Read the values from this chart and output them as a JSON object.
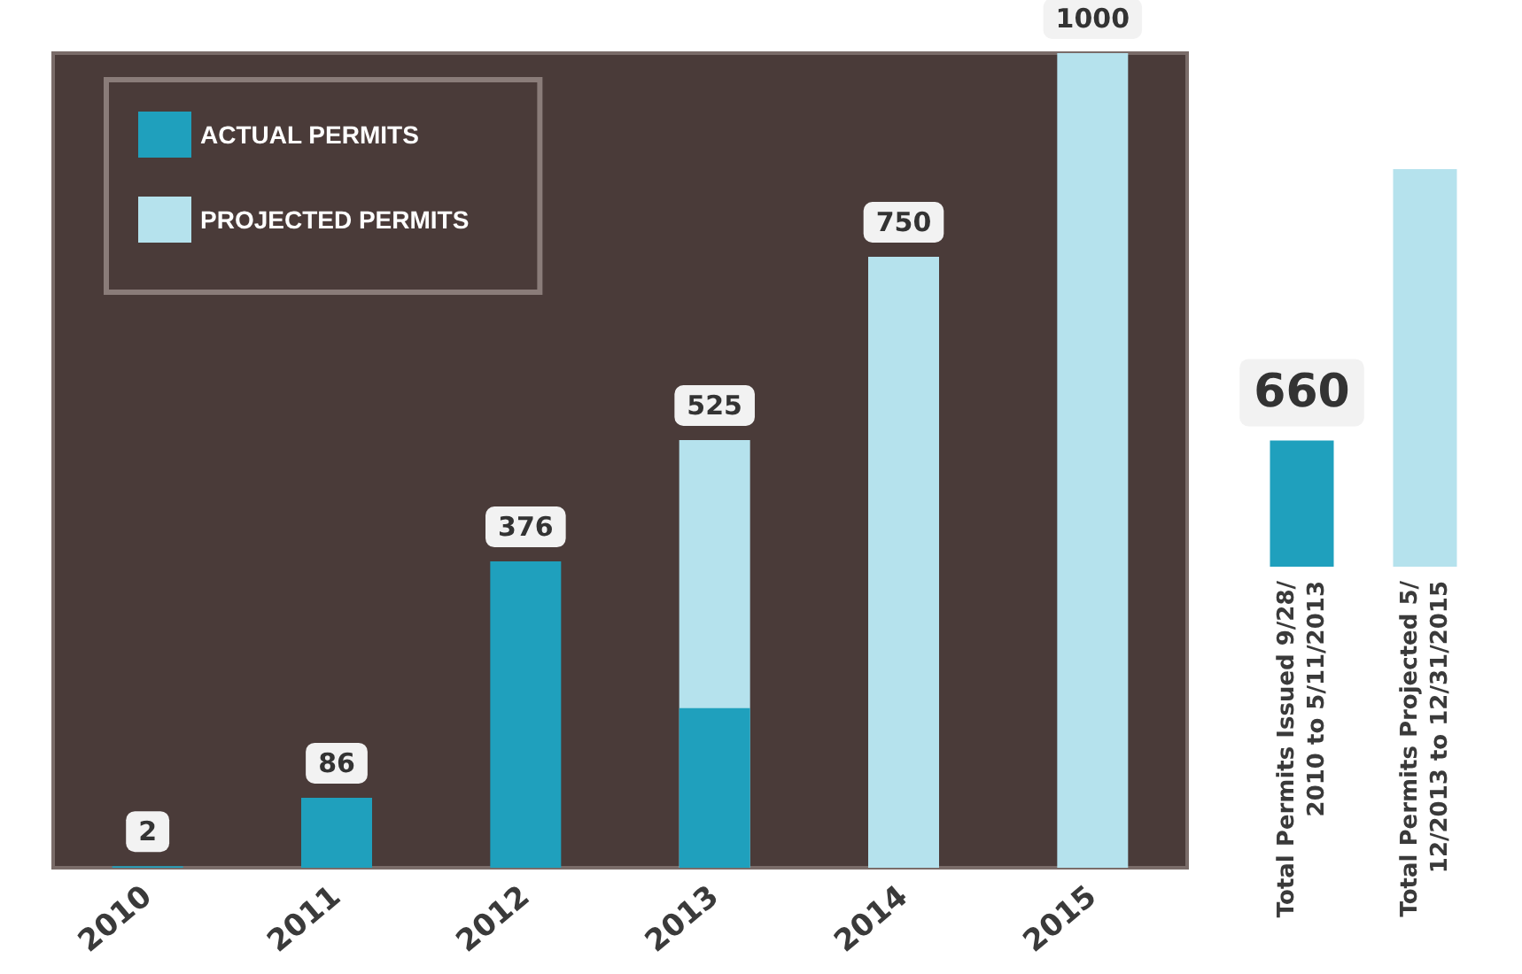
{
  "chart_data": [
    {
      "type": "bar",
      "categories": [
        "2010",
        "2011",
        "2012",
        "2013",
        "2014",
        "2015"
      ],
      "legend": "top left",
      "series": [
        {
          "name": "ACTUAL PERMITS",
          "color": "#1fa0bd",
          "values": [
            2,
            86,
            376,
            196,
            null,
            null
          ],
          "value_labels": [
            "2",
            "86",
            "376",
            null,
            null,
            null
          ]
        },
        {
          "name": "PROJECTED PERMITS",
          "color": "#b5e2ed",
          "values": [
            null,
            null,
            null,
            525,
            750,
            1000
          ],
          "value_labels": [
            null,
            null,
            null,
            "525",
            "750",
            "1000"
          ]
        }
      ]
    },
    {
      "type": "bar",
      "categories": [
        "Total Permits Issued 9/28/2010 to 5/11/2013",
        "Total Permits Projected 5/12/2013 to 12/31/2015"
      ],
      "values": [
        660,
        2079
      ],
      "colors": [
        "#1fa0bd",
        "#b5e2ed"
      ],
      "value_labels": [
        "660",
        null
      ]
    }
  ]
}
